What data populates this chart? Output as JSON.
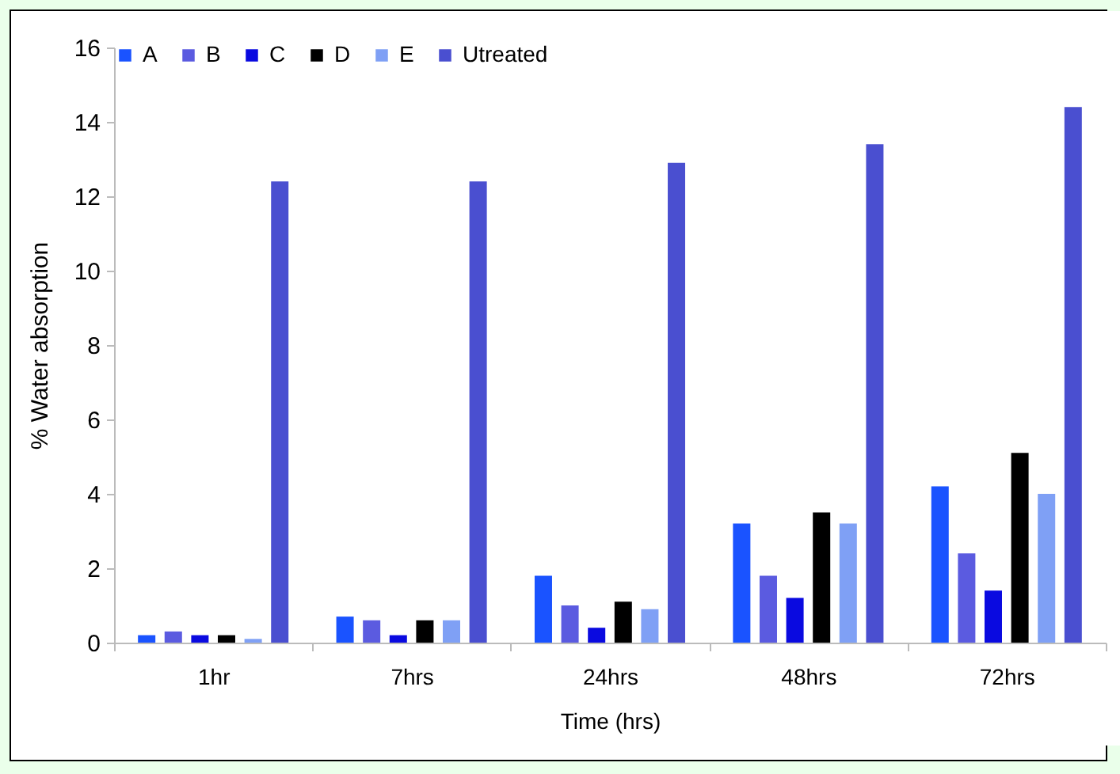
{
  "chart_data": {
    "type": "bar",
    "xlabel": "Time (hrs)",
    "ylabel": "% Water absorption",
    "categories": [
      "1hr",
      "7hrs",
      "24hrs",
      "48hrs",
      "72hrs"
    ],
    "series": [
      {
        "name": "A",
        "color": "#1a53ff",
        "values": [
          0.2,
          0.7,
          1.8,
          3.2,
          4.2
        ]
      },
      {
        "name": "B",
        "color": "#5b5be0",
        "values": [
          0.3,
          0.6,
          1.0,
          1.8,
          2.4
        ]
      },
      {
        "name": "C",
        "color": "#0a0ae0",
        "values": [
          0.2,
          0.2,
          0.4,
          1.2,
          1.4
        ]
      },
      {
        "name": "D",
        "color": "#000000",
        "values": [
          0.2,
          0.6,
          1.1,
          3.5,
          5.1
        ]
      },
      {
        "name": "E",
        "color": "#7fa0f5",
        "values": [
          0.1,
          0.6,
          0.9,
          3.2,
          4.0
        ]
      },
      {
        "name": "Utreated",
        "color": "#4a4fd0",
        "values": [
          12.4,
          12.4,
          12.9,
          13.4,
          14.4
        ]
      }
    ],
    "ylim": [
      0,
      16
    ],
    "yticks": [
      0,
      2,
      4,
      6,
      8,
      10,
      12,
      14,
      16
    ],
    "grid": false,
    "legend": "top"
  }
}
